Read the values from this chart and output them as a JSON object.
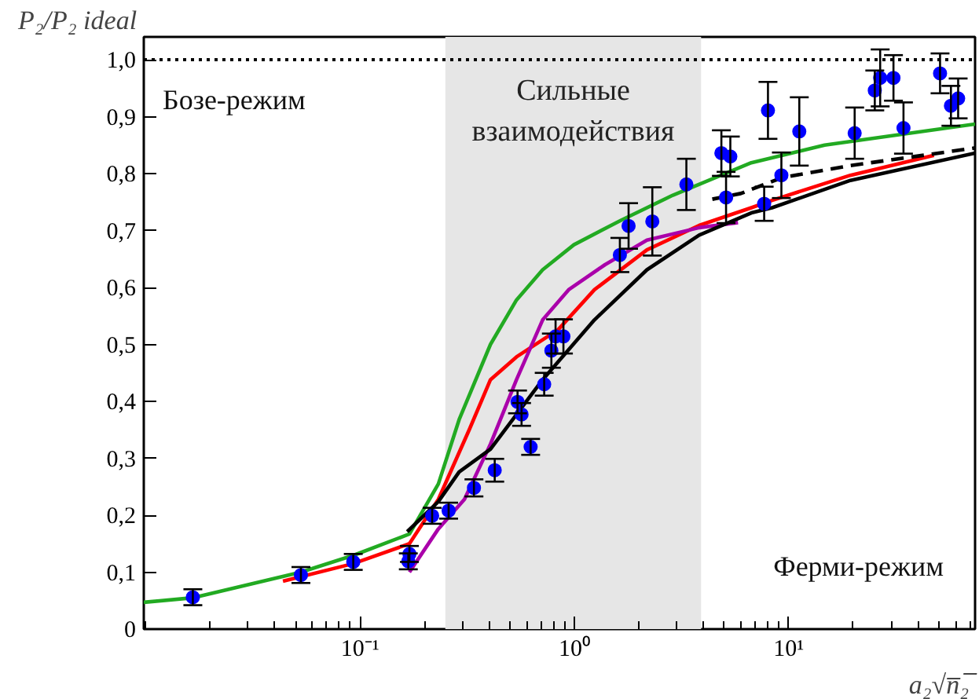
{
  "chart_data": {
    "type": "line",
    "xlabel": "a₂√n̅₂̅",
    "ylabel": "P₂/P₂ ideal",
    "annotations": [
      "Бозе-режим",
      "Ферми-режим"
    ],
    "log": "x",
    "grid": false,
    "xlim": [
      0.0098,
      74
    ],
    "ylim": [
      0,
      1.04
    ],
    "xticks": [
      {
        "value": 0.1,
        "label": "10⁻¹"
      },
      {
        "value": 1,
        "label": "10⁰"
      },
      {
        "value": 10,
        "label": "10¹"
      }
    ],
    "yticks": [
      0,
      {
        "value": 0.1,
        "label": "0,1"
      },
      {
        "value": 0.2,
        "label": "0,2"
      },
      {
        "value": 0.3,
        "label": "0,3"
      },
      {
        "value": 0.4,
        "label": "0,4"
      },
      {
        "value": 0.5,
        "label": "0,5"
      },
      {
        "value": 0.6,
        "label": "0,6"
      },
      {
        "value": 0.7,
        "label": "0,7"
      },
      {
        "value": 0.8,
        "label": "0,8"
      },
      {
        "value": 0.9,
        "label": "0,9"
      },
      {
        "value": 1.0,
        "label": "1,0"
      }
    ],
    "ref_lines": [
      {
        "axis": "y",
        "value": 1.0,
        "label": null,
        "color": "#000000",
        "line_style": "dotted"
      }
    ],
    "bands": [
      {
        "axis": "x",
        "from": 0.25,
        "to": 3.9,
        "label": "Сильные\nвзаимодействия",
        "color": "#e6e6e6"
      }
    ],
    "series": [
      {
        "color": "#22aa22",
        "line_style": "solid",
        "x": [
          0.0098,
          0.0166,
          0.053,
          0.094,
          0.17,
          0.232,
          0.29,
          0.406,
          0.537,
          0.711,
          0.995,
          1.65,
          2.88,
          6.69,
          14.7,
          74
        ],
        "values": [
          0.047,
          0.055,
          0.1,
          0.13,
          0.167,
          0.255,
          0.368,
          0.5,
          0.578,
          0.631,
          0.675,
          0.718,
          0.762,
          0.819,
          0.85,
          0.887
        ]
      },
      {
        "color": "#ff0000",
        "line_style": "solid",
        "x": [
          0.0437,
          0.093,
          0.17,
          0.232,
          0.324,
          0.406,
          0.537,
          0.841,
          1.24,
          2.18,
          3.82,
          6.69,
          8.36,
          19.4,
          47.6
        ],
        "values": [
          0.084,
          0.115,
          0.15,
          0.228,
          0.351,
          0.438,
          0.478,
          0.526,
          0.596,
          0.666,
          0.709,
          0.74,
          0.753,
          0.797,
          0.832
        ]
      },
      {
        "color": "#aa00aa",
        "line_style": "solid",
        "x": [
          0.17,
          0.232,
          0.307,
          0.406,
          0.537,
          0.711,
          0.94,
          1.39,
          2.18,
          3.82,
          5.8
        ],
        "values": [
          0.1,
          0.176,
          0.228,
          0.325,
          0.438,
          0.543,
          0.596,
          0.64,
          0.683,
          0.705,
          0.714
        ]
      },
      {
        "color": "#000000",
        "line_style": "solid",
        "x": [
          0.166,
          0.232,
          0.29,
          0.406,
          0.711,
          1.24,
          2.18,
          3.82,
          6.69,
          8.36,
          19.4,
          74
        ],
        "values": [
          0.171,
          0.224,
          0.276,
          0.316,
          0.438,
          0.543,
          0.631,
          0.692,
          0.731,
          0.74,
          0.788,
          0.836
        ]
      },
      {
        "color": "#000000",
        "line_style": "dashed",
        "x": [
          4.4,
          5.97,
          9.34,
          19.4,
          74
        ],
        "values": [
          0.755,
          0.765,
          0.793,
          0.814,
          0.845
        ]
      },
      {
        "type": "scatter",
        "color": "#0000ff",
        "marker": "circle",
        "x": [
          0.0166,
          0.053,
          0.093,
          0.17,
          0.168,
          0.217,
          0.259,
          0.34,
          0.425,
          0.543,
          0.567,
          0.625,
          0.723,
          0.781,
          0.817,
          0.889,
          1.63,
          1.79,
          2.31,
          3.33,
          4.85,
          5.34,
          5.1,
          7.68,
          8.0,
          9.24,
          11.2,
          20.3,
          25.2,
          26.7,
          30.8,
          34.3,
          50.8,
          57.1,
          61.7
        ],
        "values": [
          0.056,
          0.095,
          0.118,
          0.132,
          0.119,
          0.199,
          0.208,
          0.248,
          0.279,
          0.399,
          0.377,
          0.32,
          0.43,
          0.489,
          0.514,
          0.514,
          0.657,
          0.708,
          0.716,
          0.781,
          0.836,
          0.83,
          0.758,
          0.747,
          0.911,
          0.797,
          0.874,
          0.871,
          0.946,
          0.968,
          0.968,
          0.88,
          0.976,
          0.919,
          0.932
        ],
        "errors": [
          0.014,
          0.014,
          0.014,
          0.014,
          0.014,
          0.014,
          0.014,
          0.015,
          0.02,
          0.02,
          0.02,
          0.014,
          0.02,
          0.03,
          0.03,
          0.03,
          0.03,
          0.04,
          0.06,
          0.045,
          0.04,
          0.035,
          0.045,
          0.03,
          0.05,
          0.04,
          0.06,
          0.045,
          0.035,
          0.05,
          0.04,
          0.045,
          0.035,
          0.035,
          0.035
        ]
      }
    ]
  }
}
